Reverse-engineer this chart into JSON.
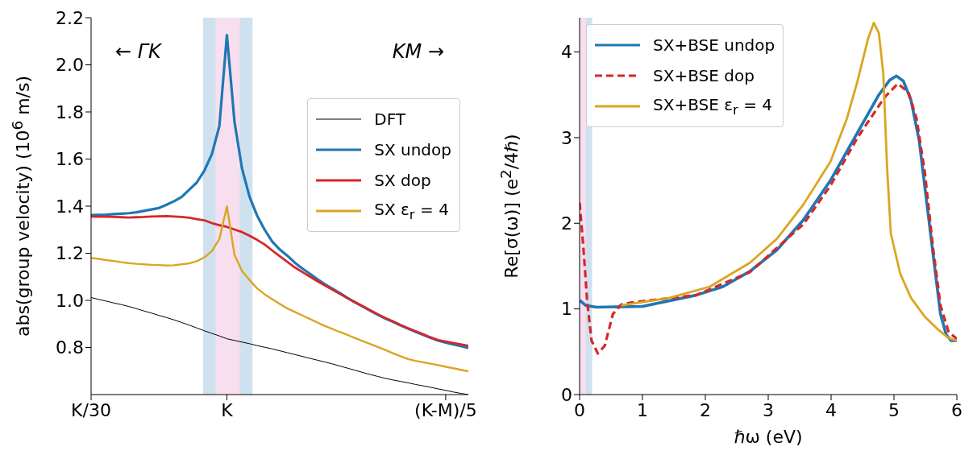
{
  "chart_data": [
    {
      "type": "line",
      "ylabel": "abs(group velocity) (10$^{6}$ m/s)",
      "annotations": [
        "← ΓK",
        "KM →"
      ],
      "categories": [
        "K/30",
        null,
        null,
        null,
        null,
        null,
        null,
        null,
        null,
        null,
        null,
        null,
        null,
        null,
        null,
        null,
        null,
        null,
        "K",
        null,
        null,
        null,
        null,
        null,
        null,
        null,
        null,
        null,
        null,
        null,
        null,
        null,
        null,
        null,
        null,
        null,
        null,
        null,
        null,
        null,
        null,
        null,
        null,
        null,
        null,
        null,
        null,
        "(K-M)/5",
        null,
        null,
        null
      ],
      "ylim": [
        0.6,
        2.2
      ],
      "yticks": [
        {
          "value": 0.8,
          "label": "0.8"
        },
        {
          "value": 1,
          "label": "1.0"
        },
        {
          "value": 1.2,
          "label": "1.2"
        },
        {
          "value": 1.4,
          "label": "1.4"
        },
        {
          "value": 1.6,
          "label": "1.6"
        },
        {
          "value": 1.8,
          "label": "1.8"
        },
        {
          "value": 2,
          "label": "2.0"
        },
        {
          "value": 2.2,
          "label": "2.2"
        }
      ],
      "legend": "top right",
      "series": [
        {
          "name": "DFT",
          "color": "#000000",
          "values": [
            1.012,
            1.004,
            0.997,
            0.989,
            0.982,
            0.974,
            0.965,
            0.955,
            0.946,
            0.936,
            0.927,
            0.917,
            0.906,
            0.895,
            0.883,
            0.871,
            0.86,
            0.849,
            0.837,
            0.83,
            0.823,
            0.816,
            0.808,
            0.801,
            0.794,
            0.786,
            0.778,
            0.77,
            0.762,
            0.754,
            0.746,
            0.738,
            0.73,
            0.721,
            0.712,
            0.703,
            0.694,
            0.685,
            0.677,
            0.669,
            0.662,
            0.656,
            0.65,
            0.643,
            0.637,
            0.631,
            0.624,
            0.618,
            0.611,
            0.605,
            0.6
          ]
        },
        {
          "name": "SX undop",
          "color": "#1f77b4",
          "values": [
            1.362,
            1.363,
            1.364,
            1.366,
            1.368,
            1.37,
            1.374,
            1.38,
            1.386,
            1.392,
            1.406,
            1.421,
            1.439,
            1.47,
            1.5,
            1.55,
            1.62,
            1.74,
            2.126,
            1.76,
            1.56,
            1.44,
            1.36,
            1.3,
            1.25,
            1.216,
            1.19,
            1.16,
            1.135,
            1.113,
            1.09,
            1.068,
            1.049,
            1.03,
            1.01,
            0.991,
            0.974,
            0.956,
            0.939,
            0.923,
            0.909,
            0.894,
            0.88,
            0.867,
            0.854,
            0.841,
            0.829,
            0.821,
            0.813,
            0.806,
            0.798
          ]
        },
        {
          "name": "SX dop",
          "color": "#d62728",
          "values": [
            1.356,
            1.355,
            1.355,
            1.354,
            1.353,
            1.352,
            1.353,
            1.354,
            1.356,
            1.357,
            1.358,
            1.356,
            1.354,
            1.351,
            1.345,
            1.34,
            1.328,
            1.319,
            1.312,
            1.301,
            1.29,
            1.274,
            1.257,
            1.237,
            1.212,
            1.188,
            1.164,
            1.14,
            1.12,
            1.101,
            1.081,
            1.063,
            1.045,
            1.027,
            1.009,
            0.992,
            0.975,
            0.958,
            0.941,
            0.925,
            0.911,
            0.896,
            0.882,
            0.869,
            0.856,
            0.843,
            0.831,
            0.825,
            0.819,
            0.813,
            0.807
          ]
        },
        {
          "name": "SX ε$_{r}$ = 4",
          "color": "#dba521",
          "values": [
            1.18,
            1.176,
            1.171,
            1.167,
            1.162,
            1.158,
            1.155,
            1.153,
            1.151,
            1.15,
            1.148,
            1.149,
            1.153,
            1.157,
            1.166,
            1.182,
            1.209,
            1.26,
            1.399,
            1.194,
            1.125,
            1.086,
            1.051,
            1.026,
            1.005,
            0.985,
            0.966,
            0.951,
            0.936,
            0.921,
            0.906,
            0.891,
            0.878,
            0.865,
            0.853,
            0.84,
            0.827,
            0.815,
            0.802,
            0.789,
            0.776,
            0.763,
            0.751,
            0.743,
            0.737,
            0.731,
            0.725,
            0.718,
            0.712,
            0.705,
            0.699
          ]
        }
      ]
    },
    {
      "type": "line",
      "xlabel": "ℏω (eV)",
      "ylabel": "Re[σ(ω)] (e$^{2}$/4ℏ)",
      "xlim": [
        0,
        6
      ],
      "xticks": [
        0,
        1,
        2,
        3,
        4,
        5,
        6
      ],
      "ylim": [
        0,
        4.4
      ],
      "yticks": [
        0,
        1,
        2,
        3,
        4
      ],
      "legend": "top left",
      "bands": [
        {
          "axis": "x",
          "from": 0,
          "to": 0.2,
          "color": "#cfe1ef"
        },
        {
          "axis": "x",
          "from": 0,
          "to": 0.1,
          "color": "#f7dff0"
        }
      ],
      "series": [
        {
          "name": "SX+BSE undop",
          "color": "#1f77b4",
          "x": [
            0,
            0.1,
            0.27,
            1.0,
            1.85,
            2.28,
            2.71,
            3.14,
            3.56,
            3.99,
            4.42,
            4.76,
            4.93,
            5.04,
            5.15,
            5.27,
            5.4,
            5.53,
            5.66,
            5.74,
            5.83,
            5.91,
            6.0
          ],
          "values": [
            1.1,
            1.04,
            1.02,
            1.03,
            1.16,
            1.26,
            1.44,
            1.69,
            2.04,
            2.5,
            3.06,
            3.5,
            3.67,
            3.72,
            3.66,
            3.44,
            2.97,
            2.19,
            1.41,
            0.94,
            0.7,
            0.63,
            0.63
          ]
        },
        {
          "name": "SX+BSE dop",
          "color": "#d62728",
          "line_style": "dashed",
          "x": [
            0,
            0.06,
            0.12,
            0.19,
            0.29,
            0.4,
            0.53,
            0.66,
            0.79,
            1.0,
            1.85,
            2.71,
            3.56,
            3.99,
            4.42,
            4.85,
            5.06,
            5.23,
            5.36,
            5.49,
            5.62,
            5.74,
            5.87,
            6.0
          ],
          "values": [
            2.24,
            1.72,
            1.1,
            0.63,
            0.48,
            0.57,
            0.94,
            1.05,
            1.07,
            1.09,
            1.16,
            1.43,
            1.99,
            2.44,
            3.0,
            3.47,
            3.63,
            3.53,
            3.22,
            2.6,
            1.72,
            1.04,
            0.73,
            0.65
          ]
        },
        {
          "name": "SX+BSE ε$_{r}$ = 4",
          "color": "#dba521",
          "x": [
            0.66,
            1.43,
            2.07,
            2.71,
            3.14,
            3.56,
            3.99,
            4.25,
            4.42,
            4.59,
            4.68,
            4.76,
            4.83,
            4.89,
            4.95,
            5.1,
            5.27,
            5.49,
            5.7,
            5.87,
            6.0
          ],
          "values": [
            1.04,
            1.13,
            1.26,
            1.54,
            1.82,
            2.22,
            2.72,
            3.22,
            3.66,
            4.16,
            4.34,
            4.22,
            3.75,
            2.66,
            1.88,
            1.41,
            1.13,
            0.91,
            0.76,
            0.66,
            0.63
          ]
        }
      ]
    }
  ]
}
